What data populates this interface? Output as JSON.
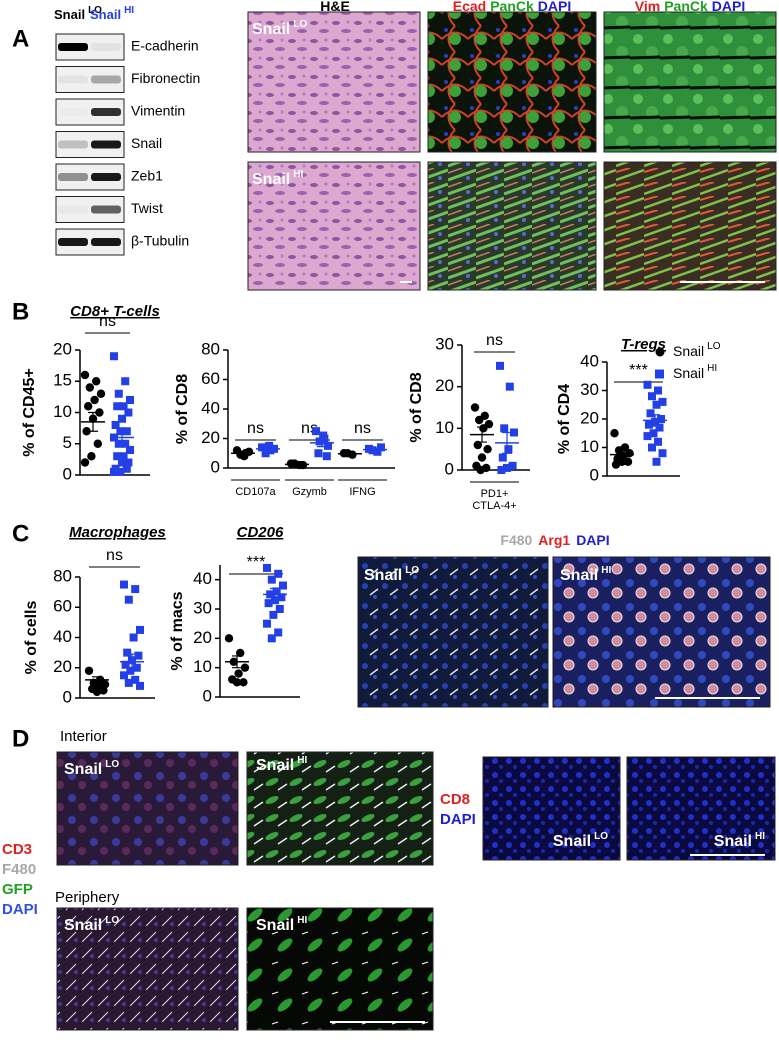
{
  "panel_a": {
    "label": "A",
    "blot": {
      "lanes": [
        {
          "name": "Snail",
          "sup": "LO"
        },
        {
          "name": "Snail",
          "sup": "HI"
        }
      ],
      "proteins": [
        "E-cadherin",
        "Fibronectin",
        "Vimentin",
        "Snail",
        "Zeb1",
        "Twist",
        "β-Tubulin"
      ]
    },
    "columns": [
      [
        "H&E"
      ],
      [
        "Ecad",
        "PanCk",
        "DAPI"
      ],
      [
        "Vim",
        "PanCk",
        "DAPI"
      ]
    ],
    "rows": [
      {
        "name": "Snail",
        "sup": "LO"
      },
      {
        "name": "Snail",
        "sup": "HI"
      }
    ]
  },
  "panel_b": {
    "label": "B",
    "legend": [
      {
        "name": "Snail",
        "sup": "LO",
        "color": "#000000",
        "marker": "circle"
      },
      {
        "name": "Snail",
        "sup": "HI",
        "color": "#2340e6",
        "marker": "square"
      }
    ],
    "charts": [
      {
        "type": "scatter",
        "title": "CD8+ T-cells",
        "ylabel": "% of CD45+",
        "ylim": [
          0,
          20
        ],
        "yticks": [
          0,
          5,
          10,
          15,
          20
        ],
        "groups": [
          {
            "sig": "ns",
            "series": [
              {
                "values": [
                  16,
                  15,
                  14,
                  13,
                  12,
                  11,
                  10,
                  9,
                  7,
                  5,
                  3,
                  2
                ],
                "mean": 8.5,
                "sem": 1.5
              },
              {
                "values": [
                  19,
                  15,
                  13,
                  12,
                  11,
                  11,
                  10,
                  9,
                  8,
                  7,
                  7,
                  6,
                  5,
                  5,
                  4,
                  3,
                  3,
                  2,
                  2,
                  1,
                  1,
                  0.5,
                  0.5
                ],
                "mean": 6,
                "sem": 1.1
              }
            ]
          }
        ]
      },
      {
        "type": "scatter",
        "ylabel": "% of CD8",
        "ylim": [
          0,
          80
        ],
        "yticks": [
          0,
          20,
          40,
          60,
          80
        ],
        "groups": [
          {
            "label": [
              "CD107a"
            ],
            "sig": "ns",
            "series": [
              {
                "values": [
                  12,
                  10,
                  9,
                  11,
                  8
                ],
                "mean": 10,
                "sem": 1
              },
              {
                "values": [
                  14,
                  12,
                  10,
                  13,
                  15
                ],
                "mean": 13,
                "sem": 1
              }
            ]
          },
          {
            "label": [
              "Gzymb"
            ],
            "sig": "ns",
            "series": [
              {
                "values": [
                  3,
                  2,
                  3,
                  2
                ],
                "mean": 2.5,
                "sem": 0.4
              },
              {
                "values": [
                  25,
                  20,
                  18,
                  15,
                  22,
                  10,
                  8
                ],
                "mean": 17,
                "sem": 2.5
              }
            ]
          },
          {
            "label": [
              "IFNG"
            ],
            "sig": "ns",
            "series": [
              {
                "values": [
                  10,
                  9,
                  10
                ],
                "mean": 9.7,
                "sem": 0.4
              },
              {
                "values": [
                  13,
                  11,
                  12,
                  14
                ],
                "mean": 12.5,
                "sem": 0.7
              }
            ]
          }
        ]
      },
      {
        "type": "scatter",
        "ylabel": "% of CD8",
        "ylim": [
          0,
          30
        ],
        "yticks": [
          0,
          10,
          20,
          30
        ],
        "groups": [
          {
            "label": [
              "PD1+",
              "CTLA-4+"
            ],
            "sig": "ns",
            "series": [
              {
                "values": [
                  15,
                  13,
                  12,
                  11,
                  10,
                  6,
                  5,
                  3,
                  1,
                  0.5,
                  0
                ],
                "mean": 8.5,
                "sem": 1.8
              },
              {
                "values": [
                  25,
                  20,
                  10,
                  9,
                  5,
                  3,
                  1,
                  0.5,
                  0
                ],
                "mean": 6.5,
                "sem": 2.5
              }
            ]
          }
        ]
      },
      {
        "type": "scatter",
        "title": "T-regs",
        "ylabel": "% of CD4",
        "ylim": [
          0,
          40
        ],
        "yticks": [
          0,
          10,
          20,
          30,
          40
        ],
        "groups": [
          {
            "sig": "***",
            "series": [
              {
                "values": [
                  15,
                  10,
                  9,
                  8,
                  7,
                  6,
                  5,
                  5,
                  4
                ],
                "mean": 7.5,
                "sem": 1.2
              },
              {
                "values": [
                  32,
                  30,
                  28,
                  26,
                  25,
                  22,
                  20,
                  19,
                  18,
                  17,
                  15,
                  14,
                  12,
                  10,
                  8,
                  5
                ],
                "mean": 19.5,
                "sem": 2
              }
            ]
          }
        ]
      }
    ]
  },
  "panel_c": {
    "label": "C",
    "charts": [
      {
        "type": "scatter",
        "title": "Macrophages",
        "ylabel": "% of cells",
        "ylim": [
          0,
          80
        ],
        "yticks": [
          0,
          20,
          40,
          60,
          80
        ],
        "groups": [
          {
            "sig": "ns",
            "series": [
              {
                "values": [
                  18,
                  12,
                  10,
                  9,
                  8,
                  6,
                  5,
                  4
                ],
                "mean": 12,
                "sem": 2
              },
              {
                "values": [
                  75,
                  72,
                  65,
                  45,
                  40,
                  30,
                  28,
                  25,
                  22,
                  20,
                  18,
                  15,
                  12,
                  10,
                  8
                ],
                "mean": 24,
                "sem": 5
              }
            ]
          }
        ]
      },
      {
        "type": "scatter",
        "title": "CD206",
        "ylabel": "% of macs",
        "ylim": [
          0,
          45
        ],
        "yticks": [
          0,
          10,
          20,
          30,
          40
        ],
        "groups": [
          {
            "sig": "***",
            "series": [
              {
                "values": [
                  20,
                  15,
                  12,
                  10,
                  8,
                  6,
                  5,
                  5
                ],
                "mean": 12,
                "sem": 2
              },
              {
                "values": [
                  44,
                  42,
                  40,
                  38,
                  36,
                  35,
                  34,
                  33,
                  32,
                  30,
                  28,
                  25,
                  22,
                  20
                ],
                "mean": 35,
                "sem": 2
              }
            ]
          }
        ]
      }
    ],
    "image_title": [
      "F480",
      "Arg1",
      "DAPI"
    ],
    "images": [
      {
        "name": "Snail",
        "sup": "LO"
      },
      {
        "name": "Snail",
        "sup": "HI"
      }
    ]
  },
  "panel_d": {
    "label": "D",
    "interior": "Interior",
    "periphery": "Periphery",
    "stains": [
      "CD3",
      "F480",
      "GFP",
      "DAPI"
    ],
    "cd8_stains": [
      "CD8",
      "DAPI"
    ],
    "images": [
      {
        "name": "Snail",
        "sup": "LO"
      },
      {
        "name": "Snail",
        "sup": "HI"
      }
    ]
  }
}
